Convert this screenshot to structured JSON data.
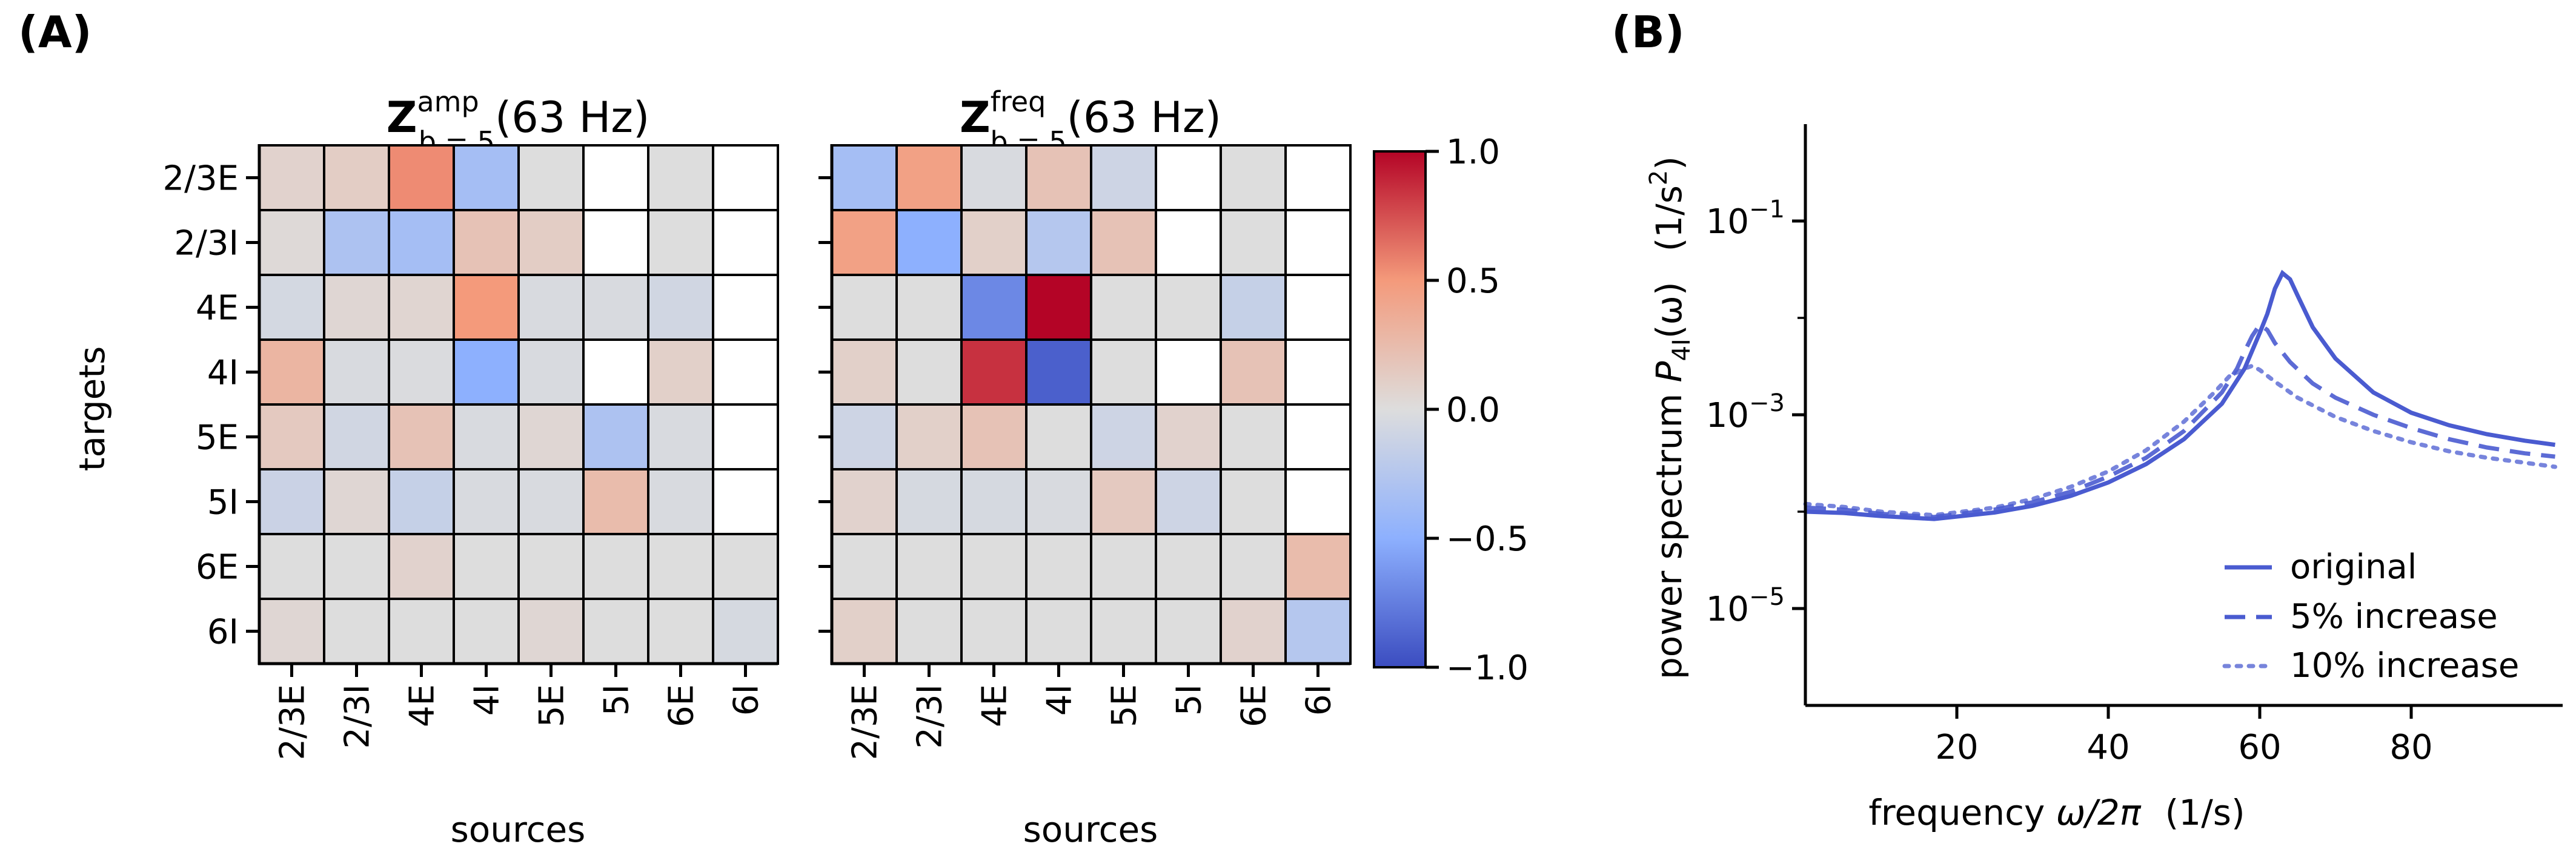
{
  "panels": {
    "a_label": "(A)",
    "b_label": "(B)"
  },
  "chart_data": [
    {
      "type": "heatmap",
      "title": {
        "symbol": "Z",
        "superscript": "amp",
        "subscript": "b = 5",
        "suffix": "(63 Hz)"
      },
      "xlabel": "sources",
      "ylabel": "targets",
      "x_categories": [
        "2/3E",
        "2/3I",
        "4E",
        "4I",
        "5E",
        "5I",
        "6E",
        "6I"
      ],
      "y_categories": [
        "2/3E",
        "2/3I",
        "4E",
        "4I",
        "5E",
        "5I",
        "6E",
        "6I"
      ],
      "values": [
        [
          0.08,
          0.12,
          0.55,
          -0.35,
          0.0,
          null,
          0.0,
          null
        ],
        [
          0.03,
          -0.3,
          -0.35,
          0.2,
          0.12,
          null,
          0.0,
          null
        ],
        [
          -0.06,
          0.05,
          0.06,
          0.5,
          -0.03,
          -0.03,
          -0.08,
          null
        ],
        [
          0.3,
          -0.03,
          -0.02,
          -0.5,
          -0.03,
          null,
          0.1,
          null
        ],
        [
          0.15,
          -0.08,
          0.2,
          -0.03,
          0.05,
          -0.3,
          -0.03,
          null
        ],
        [
          -0.12,
          0.05,
          -0.15,
          -0.03,
          -0.03,
          0.25,
          -0.03,
          null
        ],
        [
          0.0,
          0.0,
          0.08,
          0.0,
          0.0,
          0.0,
          0.0,
          0.0
        ],
        [
          0.05,
          0.0,
          0.0,
          0.0,
          0.05,
          0.0,
          0.0,
          -0.05
        ]
      ]
    },
    {
      "type": "heatmap",
      "title": {
        "symbol": "Z",
        "superscript": "freq",
        "subscript": "b = 5",
        "suffix": "(63 Hz)"
      },
      "xlabel": "sources",
      "ylabel": "",
      "x_categories": [
        "2/3E",
        "2/3I",
        "4E",
        "4I",
        "5E",
        "5I",
        "6E",
        "6I"
      ],
      "y_categories": [
        "2/3E",
        "2/3I",
        "4E",
        "4I",
        "5E",
        "5I",
        "6E",
        "6I"
      ],
      "values": [
        [
          -0.35,
          0.45,
          -0.03,
          0.2,
          -0.1,
          null,
          0.0,
          null
        ],
        [
          0.45,
          -0.5,
          0.1,
          -0.25,
          0.2,
          null,
          0.0,
          null
        ],
        [
          0.0,
          0.0,
          -0.7,
          1.0,
          0.0,
          0.0,
          -0.15,
          null
        ],
        [
          0.1,
          0.0,
          0.85,
          -0.9,
          0.0,
          null,
          0.2,
          null
        ],
        [
          -0.1,
          0.1,
          0.2,
          0.0,
          -0.1,
          0.08,
          0.0,
          null
        ],
        [
          0.08,
          -0.05,
          -0.05,
          -0.03,
          0.15,
          -0.1,
          0.0,
          null
        ],
        [
          0.0,
          0.0,
          0.0,
          0.0,
          0.0,
          0.0,
          0.0,
          0.25
        ],
        [
          0.1,
          0.0,
          0.0,
          0.0,
          0.0,
          0.0,
          0.08,
          -0.25
        ]
      ]
    },
    {
      "type": "colorbar",
      "range": [
        -1.0,
        1.0
      ],
      "colormap": "coolwarm",
      "ticks": [
        1.0,
        0.5,
        0.0,
        -0.5,
        -1.0
      ],
      "tick_labels": [
        "1.0",
        "0.5",
        "0.0",
        "−0.5",
        "−1.0"
      ]
    },
    {
      "type": "line",
      "scale_y": "log",
      "xlim": [
        0,
        100
      ],
      "ylim_log10": [
        -6,
        0
      ],
      "x_ticks": [
        20,
        40,
        60,
        80
      ],
      "x_tick_labels": [
        "20",
        "40",
        "60",
        "80"
      ],
      "y_ticks_log10": [
        -1,
        -3,
        -5
      ],
      "y_tick_labels": {
        "base": "10",
        "exponents": [
          "−1",
          "−3",
          "−5"
        ]
      },
      "xlabel": {
        "text": "frequency ",
        "math": "ω/2π",
        "unit": "(1/s)"
      },
      "ylabel": {
        "text": "power spectrum ",
        "symbol": "P",
        "subscript": "4I",
        "arg": "(ω)",
        "unit": "(1/s",
        "unit_sup": "2",
        "unit_end": ")"
      },
      "legend_position": "lower-right",
      "color": "#4a5bd0",
      "series": [
        {
          "name": "original",
          "style": "solid",
          "points": [
            [
              0,
              0.0001
            ],
            [
              5,
              9.7e-05
            ],
            [
              10,
              9e-05
            ],
            [
              17,
              8.4e-05
            ],
            [
              25,
              9.8e-05
            ],
            [
              30,
              0.000115
            ],
            [
              35,
              0.000145
            ],
            [
              40,
              0.0002
            ],
            [
              45,
              0.00031
            ],
            [
              50,
              0.00056
            ],
            [
              55,
              0.0013
            ],
            [
              58,
              0.003
            ],
            [
              60,
              0.007
            ],
            [
              61,
              0.011
            ],
            [
              62,
              0.02
            ],
            [
              63,
              0.029
            ],
            [
              64,
              0.025
            ],
            [
              65,
              0.017
            ],
            [
              67,
              0.008
            ],
            [
              70,
              0.0038
            ],
            [
              75,
              0.0017
            ],
            [
              80,
              0.00105
            ],
            [
              85,
              0.00078
            ],
            [
              90,
              0.00063
            ],
            [
              95,
              0.00054
            ],
            [
              99,
              0.00049
            ]
          ]
        },
        {
          "name": "5% increase",
          "style": "dashed",
          "points": [
            [
              0,
              0.00011
            ],
            [
              5,
              0.000105
            ],
            [
              10,
              9.5e-05
            ],
            [
              17,
              8.8e-05
            ],
            [
              25,
              0.000105
            ],
            [
              30,
              0.000125
            ],
            [
              35,
              0.00016
            ],
            [
              40,
              0.00023
            ],
            [
              45,
              0.00036
            ],
            [
              50,
              0.00068
            ],
            [
              55,
              0.0017
            ],
            [
              57,
              0.003
            ],
            [
              58,
              0.0045
            ],
            [
              59,
              0.0065
            ],
            [
              60,
              0.0085
            ],
            [
              61,
              0.0075
            ],
            [
              62,
              0.0055
            ],
            [
              64,
              0.0035
            ],
            [
              67,
              0.0021
            ],
            [
              70,
              0.0015
            ],
            [
              75,
              0.001
            ],
            [
              80,
              0.00073
            ],
            [
              85,
              0.00056
            ],
            [
              90,
              0.00046
            ],
            [
              95,
              0.0004
            ],
            [
              99,
              0.00037
            ]
          ]
        },
        {
          "name": "10% increase",
          "style": "dotted",
          "points": [
            [
              0,
              0.00012
            ],
            [
              5,
              0.000112
            ],
            [
              10,
              0.0001
            ],
            [
              17,
              9.2e-05
            ],
            [
              25,
              0.00011
            ],
            [
              30,
              0.000135
            ],
            [
              35,
              0.00018
            ],
            [
              40,
              0.00026
            ],
            [
              45,
              0.00043
            ],
            [
              50,
              0.00085
            ],
            [
              54,
              0.0017
            ],
            [
              56,
              0.0025
            ],
            [
              58,
              0.003
            ],
            [
              59,
              0.0032
            ],
            [
              60,
              0.0029
            ],
            [
              62,
              0.0022
            ],
            [
              65,
              0.0015
            ],
            [
              70,
              0.00095
            ],
            [
              75,
              0.00068
            ],
            [
              80,
              0.00052
            ],
            [
              85,
              0.00042
            ],
            [
              90,
              0.00036
            ],
            [
              95,
              0.00032
            ],
            [
              99,
              0.00029
            ]
          ]
        }
      ]
    }
  ]
}
